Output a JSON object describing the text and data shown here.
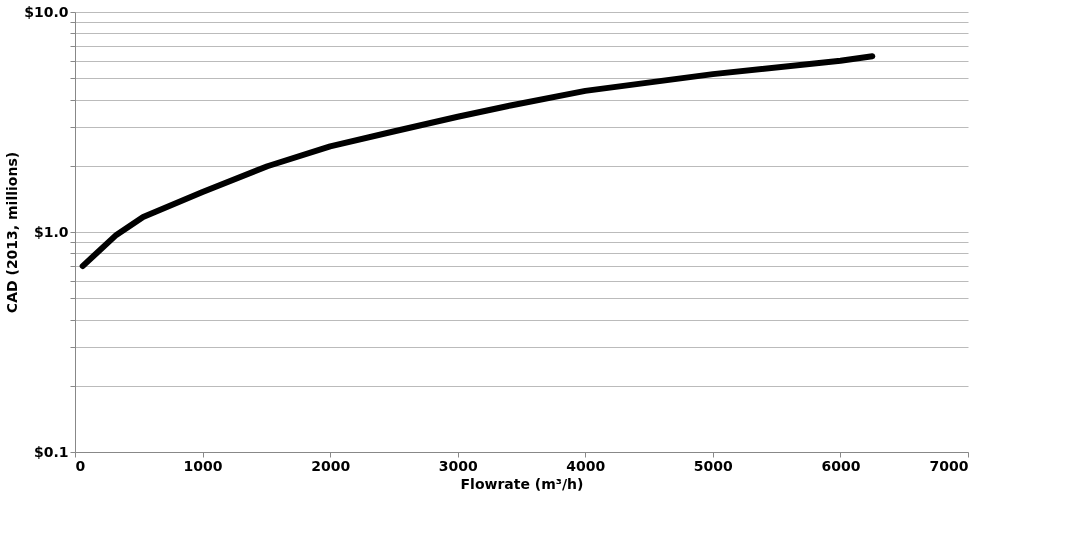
{
  "chart_data": {
    "type": "line",
    "xlabel": "Flowrate (m³/h)",
    "ylabel": "CAD (2013, millions)",
    "x": [
      60,
      324,
      534,
      1000,
      1508,
      2000,
      2505,
      3000,
      3414,
      4000,
      5000,
      6000,
      6250
    ],
    "series": [
      {
        "color": "#000000",
        "values": [
          0.7,
          0.97,
          1.17,
          1.52,
          1.99,
          2.45,
          2.87,
          3.34,
          3.76,
          4.38,
          5.22,
          6.0,
          6.29
        ]
      }
    ],
    "xlim": [
      0,
      7000
    ],
    "xticks": [
      0,
      1000,
      2000,
      3000,
      4000,
      5000,
      6000,
      7000
    ],
    "ylim": [
      0.1,
      10
    ],
    "log": "y",
    "grid": "y",
    "legend": false,
    "marker": "none",
    "line_style": "solid",
    "yticks": [
      {
        "value": 0.1,
        "label": "$0.1"
      },
      {
        "value": 0.2,
        "label": null
      },
      {
        "value": 0.3,
        "label": null
      },
      {
        "value": 0.4,
        "label": null
      },
      {
        "value": 0.5,
        "label": null
      },
      {
        "value": 0.6,
        "label": null
      },
      {
        "value": 0.7,
        "label": null
      },
      {
        "value": 0.8,
        "label": null
      },
      {
        "value": 0.9,
        "label": null
      },
      {
        "value": 1,
        "label": "$1.0"
      },
      {
        "value": 2,
        "label": null
      },
      {
        "value": 3,
        "label": null
      },
      {
        "value": 4,
        "label": null
      },
      {
        "value": 5,
        "label": null
      },
      {
        "value": 6,
        "label": null
      },
      {
        "value": 7,
        "label": null
      },
      {
        "value": 8,
        "label": null
      },
      {
        "value": 9,
        "label": null
      },
      {
        "value": 10,
        "label": "$10.0"
      }
    ]
  }
}
